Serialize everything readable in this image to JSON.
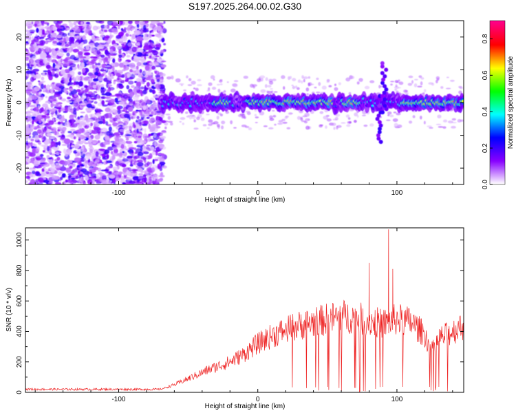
{
  "chart_data": [
    {
      "type": "heatmap",
      "title": "S197.2025.264.00.02.G30",
      "xlabel": "Height of straight line (km)",
      "ylabel": "Frequency (Hz)",
      "xlim": [
        -167,
        148
      ],
      "ylim": [
        -25,
        25
      ],
      "xticks": [
        -100,
        0,
        100
      ],
      "yticks": [
        -20,
        -10,
        0,
        10,
        20
      ],
      "xtick_labels": [
        "-100",
        "0",
        "100"
      ],
      "ytick_labels": [
        "-20",
        "-10",
        "0",
        "10",
        "20"
      ],
      "colorbar": {
        "label": "Normalized spectral amplitude",
        "range": [
          0,
          0.9
        ],
        "ticks": [
          0.0,
          0.2,
          0.4,
          0.6,
          0.8
        ],
        "tick_labels": [
          "0.0",
          "0.2",
          "0.4",
          "0.6",
          "0.8"
        ],
        "colormap": [
          "#ffffff",
          "#8800ff",
          "#0000ff",
          "#00ffff",
          "#00ff00",
          "#ffff00",
          "#ff0000",
          "#ff0088"
        ]
      },
      "noise_region_x": [
        -167,
        -70
      ],
      "signal": {
        "x_start": -70,
        "x_end": 148,
        "freq_center": 0,
        "strong_segments": [
          [
            -32,
            -20
          ],
          [
            -8,
            55
          ],
          [
            60,
            75
          ],
          [
            103,
            148
          ]
        ],
        "side_features": [
          {
            "x": 87,
            "freq_low": -12,
            "freq_high": 2
          },
          {
            "x": 91,
            "freq_low": -3,
            "freq_high": 12
          }
        ]
      }
    },
    {
      "type": "line",
      "xlabel": "Height of straight line (km)",
      "ylabel": "SNR (10 * v/v)",
      "xlim": [
        -167,
        148
      ],
      "ylim": [
        0,
        1080
      ],
      "xticks": [
        -100,
        0,
        100
      ],
      "yticks": [
        0,
        200,
        400,
        600,
        800,
        1000
      ],
      "xtick_labels": [
        "-100",
        "0",
        "100"
      ],
      "ytick_labels": [
        "0",
        "200",
        "400",
        "600",
        "800",
        "1000"
      ],
      "series": [
        {
          "name": "SNR",
          "color": "#ee2222",
          "envelope": {
            "x": [
              -167,
              -70,
              -60,
              -45,
              -35,
              -20,
              -10,
              0,
              10,
              20,
              30,
              40,
              50,
              60,
              70,
              80,
              90,
              100,
              110,
              120,
              125,
              130,
              140,
              148
            ],
            "mid": [
              20,
              20,
              50,
              110,
              150,
              200,
              250,
              320,
              370,
              410,
              440,
              460,
              480,
              500,
              490,
              470,
              450,
              480,
              460,
              380,
              270,
              350,
              400,
              440
            ]
          },
          "peaks": [
            {
              "x": 94,
              "y": 1070
            },
            {
              "x": 80,
              "y": 850
            },
            {
              "x": 97,
              "y": 810
            }
          ],
          "dropout_start_x": 18
        }
      ]
    }
  ]
}
